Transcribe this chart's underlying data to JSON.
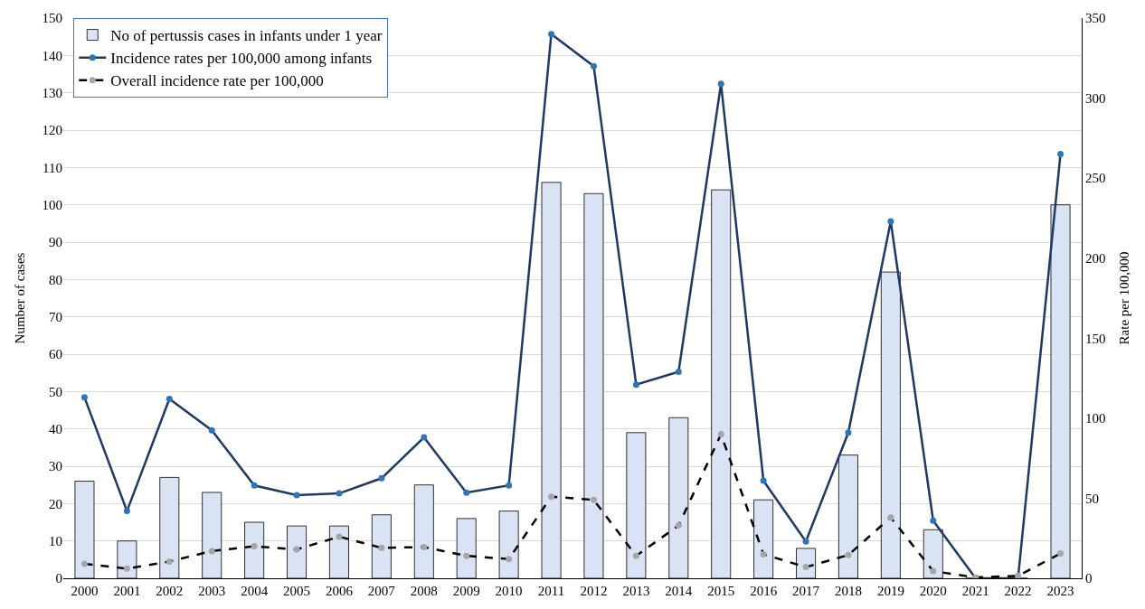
{
  "chart_data": {
    "type": "bar",
    "ylabel": "Number of cases",
    "y2label": "Rate per 100,000",
    "categories": [
      "2000",
      "2001",
      "2002",
      "2003",
      "2004",
      "2005",
      "2006",
      "2007",
      "2008",
      "2009",
      "2010",
      "2011",
      "2012",
      "2013",
      "2014",
      "2015",
      "2016",
      "2017",
      "2018",
      "2019",
      "2020",
      "2021",
      "2022",
      "2023"
    ],
    "series": [
      {
        "name": "No of pertussis cases in infants under 1 year",
        "color": "#dae3f3",
        "values": [
          26,
          10,
          27,
          23,
          15,
          14,
          14,
          17,
          25,
          16,
          18,
          106,
          103,
          39,
          43,
          104,
          21,
          8,
          33,
          82,
          13,
          0,
          0,
          100
        ]
      },
      {
        "name": "Incidence rates per 100,000 among infants",
        "type": "line",
        "axis": "y2",
        "color": "#1f3864",
        "marker": "circle",
        "line_style": "solid",
        "values": [
          113,
          42,
          112,
          92.5,
          58,
          52,
          53,
          62.5,
          88,
          53.5,
          58,
          340,
          320,
          121,
          129,
          309,
          61,
          23,
          91,
          223,
          36,
          0,
          0,
          265
        ]
      },
      {
        "name": "Overall incidence rate per 100,000",
        "type": "line",
        "axis": "y2",
        "color": "#000000",
        "marker": "circle",
        "line_style": "dashed",
        "values": [
          9,
          6,
          10.5,
          17,
          20,
          18,
          26,
          19,
          19.5,
          14,
          12,
          51,
          49,
          14,
          33,
          90,
          15,
          7,
          14.5,
          38,
          4.5,
          0.5,
          1.5,
          15.5
        ]
      }
    ],
    "ylim": [
      0,
      150
    ],
    "yticks": [
      0,
      10,
      20,
      30,
      40,
      50,
      60,
      70,
      80,
      90,
      100,
      110,
      120,
      130,
      140,
      150
    ],
    "y2lim": [
      0,
      350
    ],
    "y2ticks": [
      0,
      50,
      100,
      150,
      200,
      250,
      300,
      350
    ],
    "grid": "y",
    "legend": "top left"
  }
}
